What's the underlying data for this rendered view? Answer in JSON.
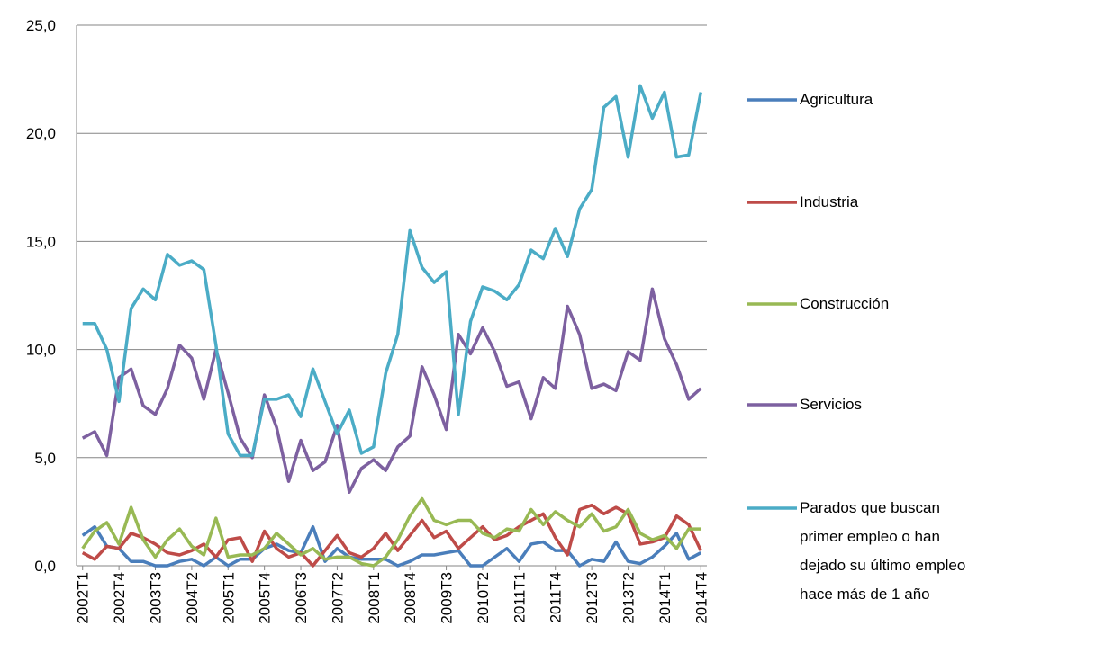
{
  "chart_data": {
    "type": "line",
    "categories": [
      "2002T1",
      null,
      null,
      "2002T4",
      null,
      null,
      "2003T3",
      null,
      null,
      "2004T2",
      null,
      null,
      "2005T1",
      null,
      null,
      "2005T4",
      null,
      null,
      "2006T3",
      null,
      null,
      "2007T2",
      null,
      null,
      "2008T1",
      null,
      null,
      "2008T4",
      null,
      null,
      "2009T3",
      null,
      null,
      "2010T2",
      null,
      null,
      "2011T1",
      null,
      null,
      "2011T4",
      null,
      null,
      "2012T3",
      null,
      null,
      "2013T2",
      null,
      null,
      "2014T1",
      null,
      null,
      "2014T4"
    ],
    "series": [
      {
        "name": "Agricultura",
        "color": "#4a7ebb",
        "values": [
          1.4,
          1.8,
          0.9,
          0.8,
          0.2,
          0.2,
          0.0,
          0.0,
          0.2,
          0.3,
          0.0,
          0.4,
          0.0,
          0.3,
          0.3,
          0.8,
          1.0,
          0.7,
          0.6,
          1.8,
          0.2,
          0.8,
          0.4,
          0.3,
          0.3,
          0.3,
          0.0,
          0.2,
          0.5,
          0.5,
          0.6,
          0.7,
          0.0,
          0.0,
          0.4,
          0.8,
          0.2,
          1.0,
          1.1,
          0.7,
          0.7,
          0.0,
          0.3,
          0.2,
          1.1,
          0.2,
          0.1,
          0.4,
          0.9,
          1.5,
          0.3,
          0.6
        ]
      },
      {
        "name": "Industria",
        "color": "#be4b48",
        "values": [
          0.6,
          0.3,
          0.9,
          0.8,
          1.5,
          1.3,
          1.0,
          0.6,
          0.5,
          0.7,
          1.0,
          0.4,
          1.2,
          1.3,
          0.2,
          1.6,
          0.8,
          0.4,
          0.6,
          0.0,
          0.7,
          1.4,
          0.6,
          0.4,
          0.8,
          1.5,
          0.7,
          1.4,
          2.1,
          1.3,
          1.6,
          0.8,
          1.3,
          1.8,
          1.2,
          1.4,
          1.8,
          2.1,
          2.4,
          1.3,
          0.5,
          2.6,
          2.8,
          2.4,
          2.7,
          2.4,
          1.0,
          1.1,
          1.3,
          2.3,
          1.9,
          0.7
        ]
      },
      {
        "name": "Construcción",
        "color": "#98b954",
        "values": [
          0.8,
          1.6,
          2.0,
          1.0,
          2.7,
          1.2,
          0.4,
          1.2,
          1.7,
          0.9,
          0.5,
          2.2,
          0.4,
          0.5,
          0.5,
          0.8,
          1.5,
          1.0,
          0.5,
          0.8,
          0.3,
          0.4,
          0.4,
          0.1,
          0.0,
          0.4,
          1.2,
          2.3,
          3.1,
          2.1,
          1.9,
          2.1,
          2.1,
          1.5,
          1.3,
          1.7,
          1.6,
          2.6,
          1.9,
          2.5,
          2.1,
          1.8,
          2.4,
          1.6,
          1.8,
          2.6,
          1.5,
          1.2,
          1.4,
          0.8,
          1.7,
          1.7
        ]
      },
      {
        "name": "Servicios",
        "color": "#7d60a0",
        "values": [
          5.9,
          6.2,
          5.1,
          8.7,
          9.1,
          7.4,
          7.0,
          8.2,
          10.2,
          9.6,
          7.7,
          10.0,
          8.0,
          5.9,
          5.0,
          7.9,
          6.4,
          3.9,
          5.8,
          4.4,
          4.8,
          6.5,
          3.4,
          4.5,
          4.9,
          4.4,
          5.5,
          6.0,
          9.2,
          7.9,
          6.3,
          10.7,
          9.8,
          11.0,
          9.9,
          8.3,
          8.5,
          6.8,
          8.7,
          8.2,
          12.0,
          10.7,
          8.2,
          8.4,
          8.1,
          9.9,
          9.5,
          12.8,
          10.5,
          9.3,
          7.7,
          8.2
        ]
      },
      {
        "name": "Parados que buscan primer empleo o han dejado su último empleo hace más de 1 año",
        "color": "#4bacc6",
        "values": [
          11.2,
          11.2,
          10.0,
          7.6,
          11.9,
          12.8,
          12.3,
          14.4,
          13.9,
          14.1,
          13.7,
          10.2,
          6.1,
          5.1,
          5.1,
          7.7,
          7.7,
          7.9,
          6.9,
          9.1,
          7.6,
          6.1,
          7.2,
          5.2,
          5.5,
          8.9,
          10.7,
          15.5,
          13.8,
          13.1,
          13.6,
          7.0,
          11.3,
          12.9,
          12.7,
          12.3,
          13.0,
          14.6,
          14.2,
          15.6,
          14.3,
          16.5,
          17.4,
          21.2,
          21.7,
          18.9,
          22.2,
          20.7,
          21.9,
          18.9,
          19.0,
          21.9
        ]
      }
    ],
    "ylim": [
      0,
      25
    ],
    "yticks": [
      {
        "value": 0,
        "label": "0,0"
      },
      {
        "value": 5,
        "label": "5,0"
      },
      {
        "value": 10,
        "label": "10,0"
      },
      {
        "value": 15,
        "label": "15,0"
      },
      {
        "value": 20,
        "label": "20,0"
      },
      {
        "value": 25,
        "label": "25,0"
      }
    ],
    "grid": true,
    "legend": "right"
  }
}
